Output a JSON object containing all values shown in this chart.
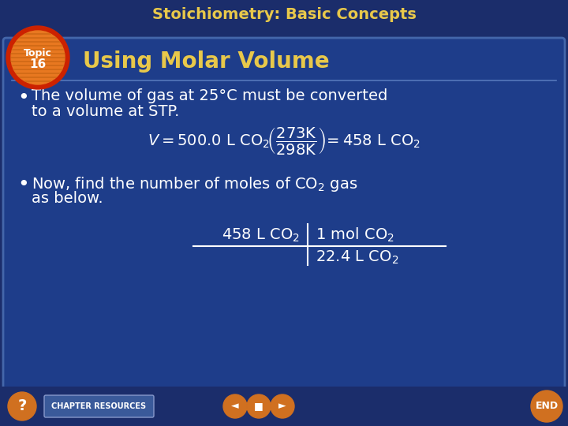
{
  "title": "Stoichiometry: Basic Concepts",
  "subtitle": "Using Molar Volume",
  "topic_number": "16",
  "topic_label": "Topic",
  "bullet1_line1": "The volume of gas at 25°C must be converted",
  "bullet1_line2": "to a volume at STP.",
  "bullet2_line1": "Now, find the number of moles of CO",
  "bullet2_sub": "2",
  "bullet2_gas": " gas",
  "bullet2_line2": "as below.",
  "bg_outer": "#1b2d6b",
  "bg_inner": "#1e3d8a",
  "title_color": "#e8c84a",
  "subtitle_color": "#e8c84a",
  "text_color": "#ffffff",
  "eq_color": "#ffffff",
  "topic_bg_outer": "#cc2200",
  "topic_bg_inner": "#e87820",
  "topic_text": "#ffffff",
  "bottom_bar_color": "#1b2d6b",
  "nav_btn_color": "#d07020",
  "chapter_res_bg": "#3a5a9a",
  "chapter_res_color": "#ffffff"
}
